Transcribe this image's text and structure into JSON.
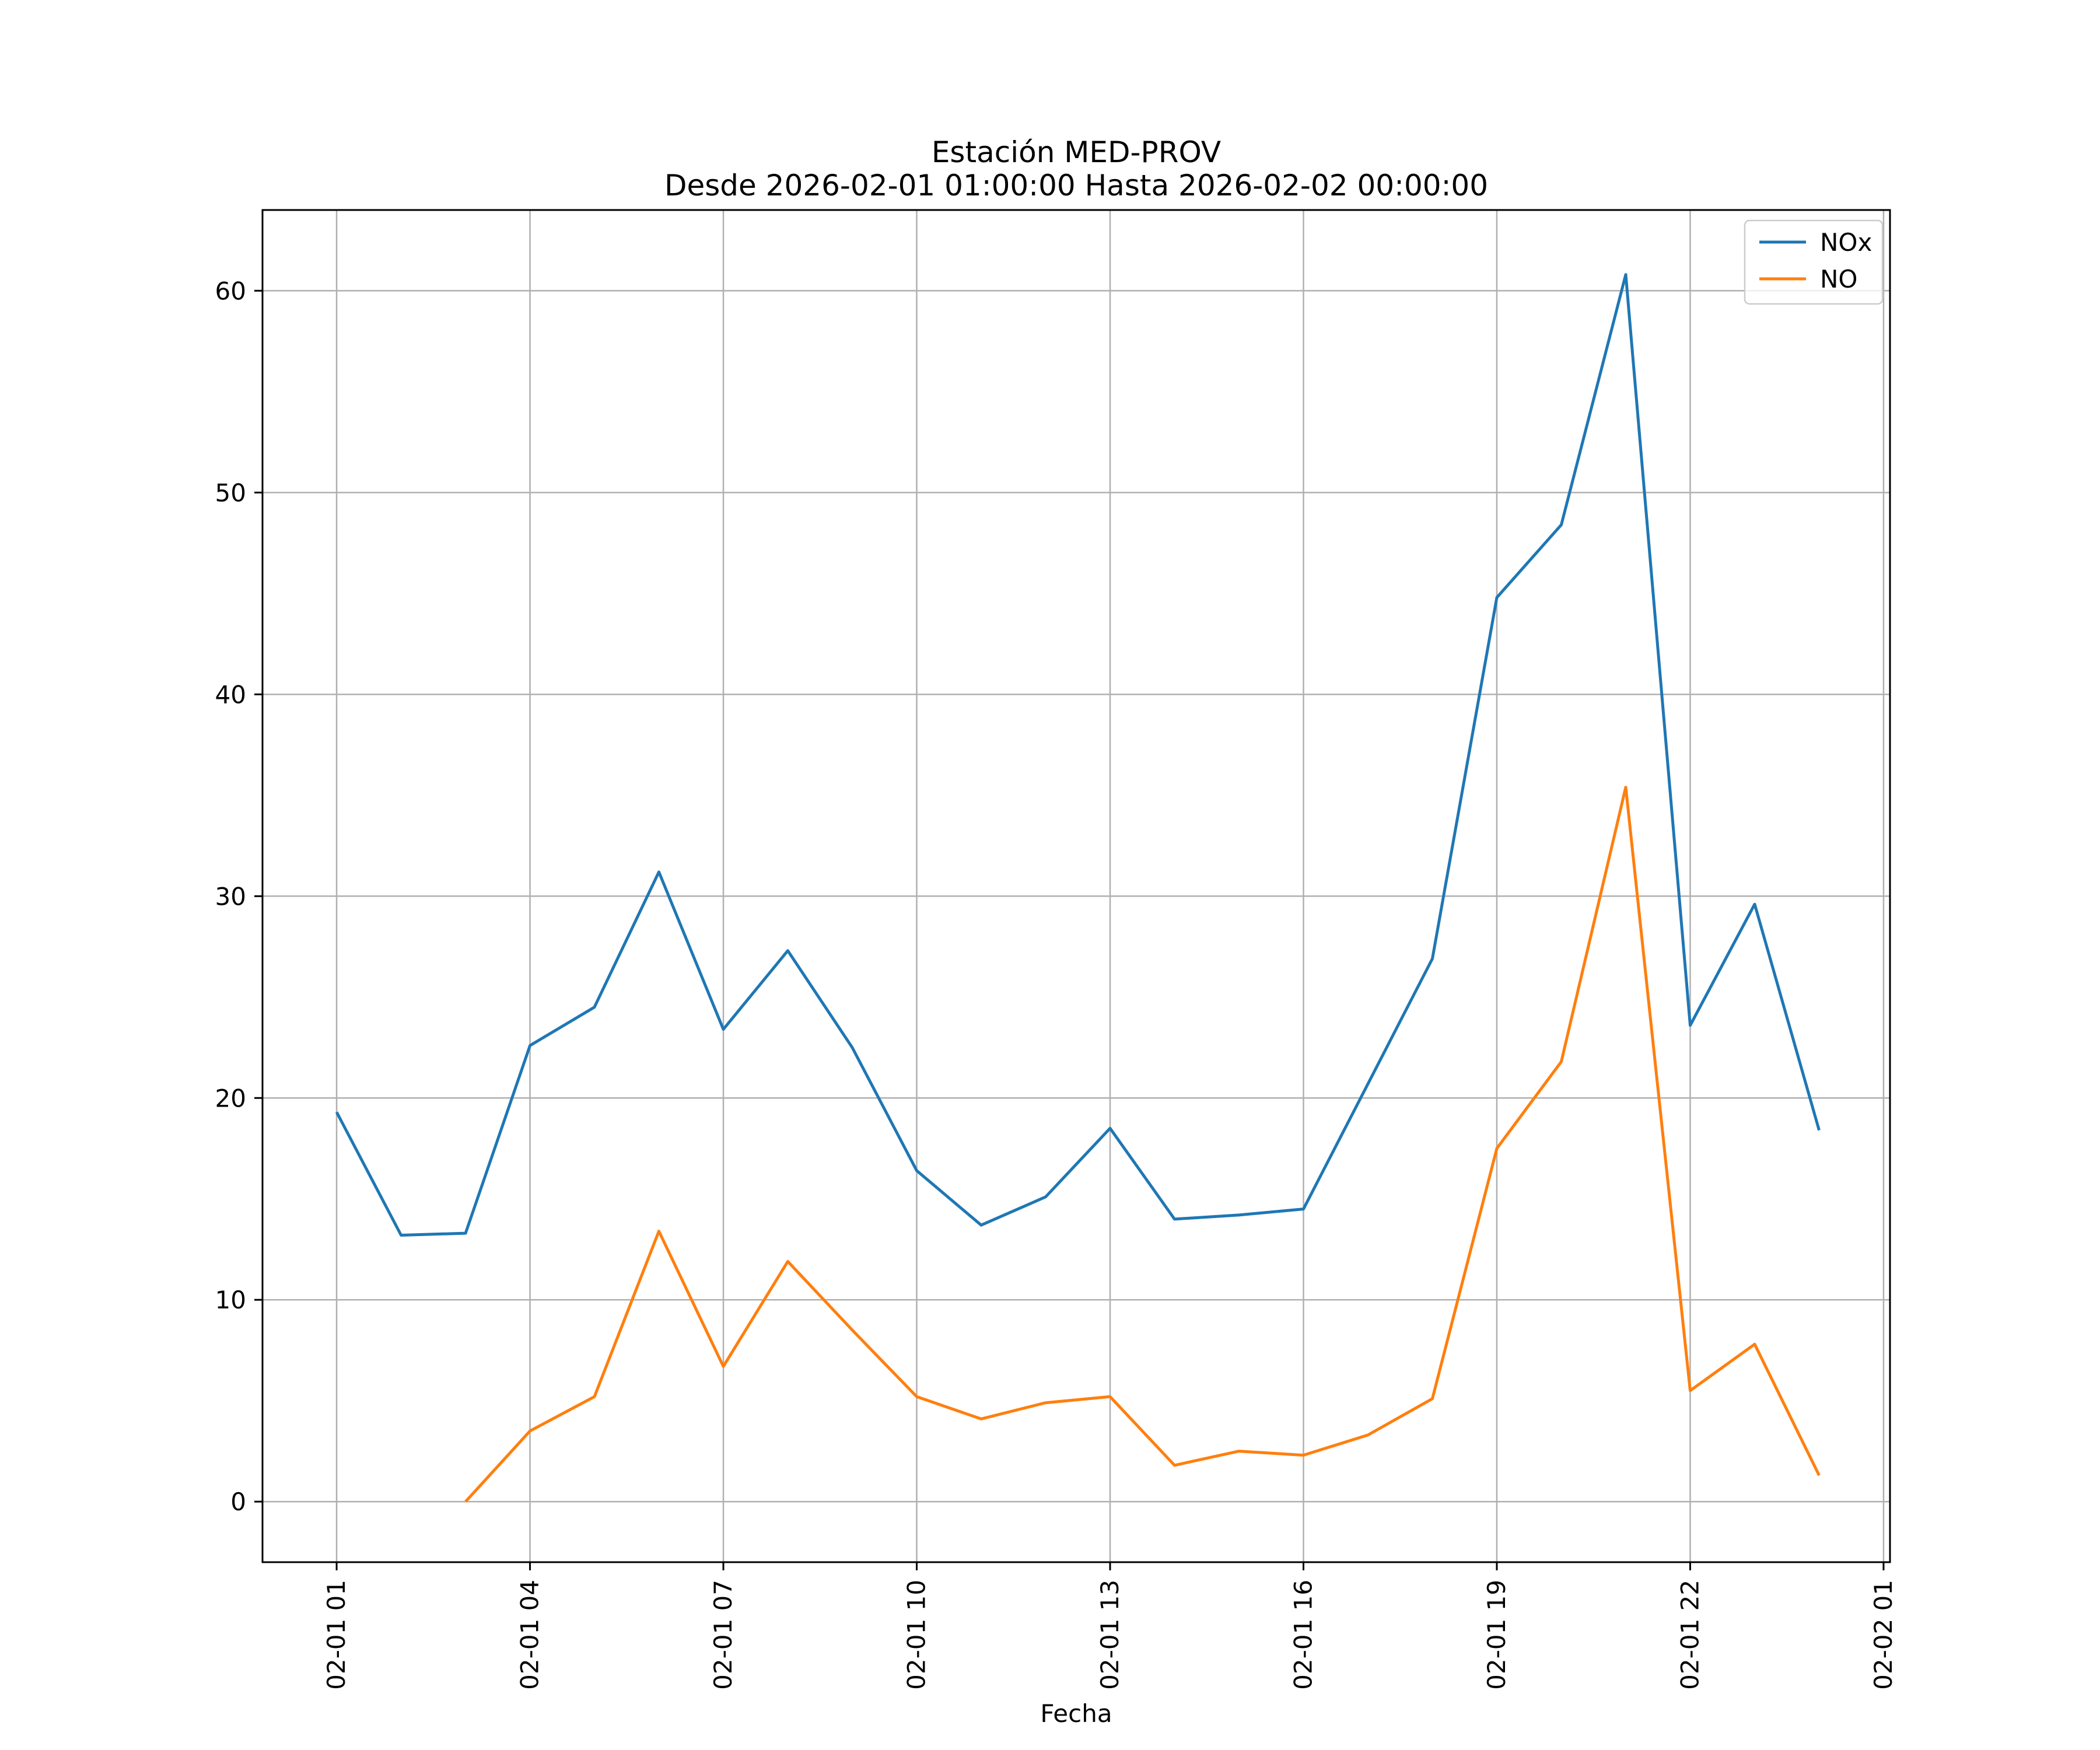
{
  "chart_data": {
    "type": "line",
    "title": "Estación MED-PROV",
    "subtitle": "Desde 2026-02-01 01:00:00 Hasta 2026-02-02 00:00:00",
    "xlabel": "Fecha",
    "ylabel": "",
    "x": [
      "02-01 01",
      "02-01 02",
      "02-01 03",
      "02-01 04",
      "02-01 05",
      "02-01 06",
      "02-01 07",
      "02-01 08",
      "02-01 09",
      "02-01 10",
      "02-01 11",
      "02-01 12",
      "02-01 13",
      "02-01 14",
      "02-01 15",
      "02-01 16",
      "02-01 17",
      "02-01 18",
      "02-01 19",
      "02-01 20",
      "02-01 21",
      "02-01 22",
      "02-01 23",
      "02-02 00"
    ],
    "x_hours": [
      1,
      2,
      3,
      4,
      5,
      6,
      7,
      8,
      9,
      10,
      11,
      12,
      13,
      14,
      15,
      16,
      17,
      18,
      19,
      20,
      21,
      22,
      23,
      24
    ],
    "xticks": [
      {
        "hour": 1,
        "label": "02-01 01"
      },
      {
        "hour": 4,
        "label": "02-01 04"
      },
      {
        "hour": 7,
        "label": "02-01 07"
      },
      {
        "hour": 10,
        "label": "02-01 10"
      },
      {
        "hour": 13,
        "label": "02-01 13"
      },
      {
        "hour": 16,
        "label": "02-01 16"
      },
      {
        "hour": 19,
        "label": "02-01 19"
      },
      {
        "hour": 22,
        "label": "02-01 22"
      },
      {
        "hour": 25,
        "label": "02-02 01"
      }
    ],
    "xlim": [
      -0.15,
      25.1
    ],
    "ylim": [
      -3,
      64
    ],
    "yticks": [
      0,
      10,
      20,
      30,
      40,
      50,
      60
    ],
    "grid": true,
    "legend_position": "top-right",
    "series": [
      {
        "name": "NOx",
        "color": "#1f77b4",
        "values": [
          19.3,
          13.2,
          13.3,
          22.6,
          24.5,
          31.2,
          23.4,
          27.3,
          22.5,
          16.4,
          13.7,
          15.1,
          18.5,
          14.0,
          14.2,
          14.5,
          20.7,
          26.9,
          44.8,
          48.4,
          60.8,
          23.6,
          29.6,
          18.4
        ]
      },
      {
        "name": "NO",
        "color": "#ff7f0e",
        "values": [
          null,
          null,
          0.0,
          3.5,
          5.2,
          13.4,
          6.7,
          11.9,
          8.5,
          5.2,
          4.1,
          4.9,
          5.2,
          1.8,
          2.5,
          2.3,
          3.3,
          5.1,
          17.5,
          21.8,
          35.4,
          5.5,
          7.8,
          1.3
        ]
      }
    ]
  }
}
